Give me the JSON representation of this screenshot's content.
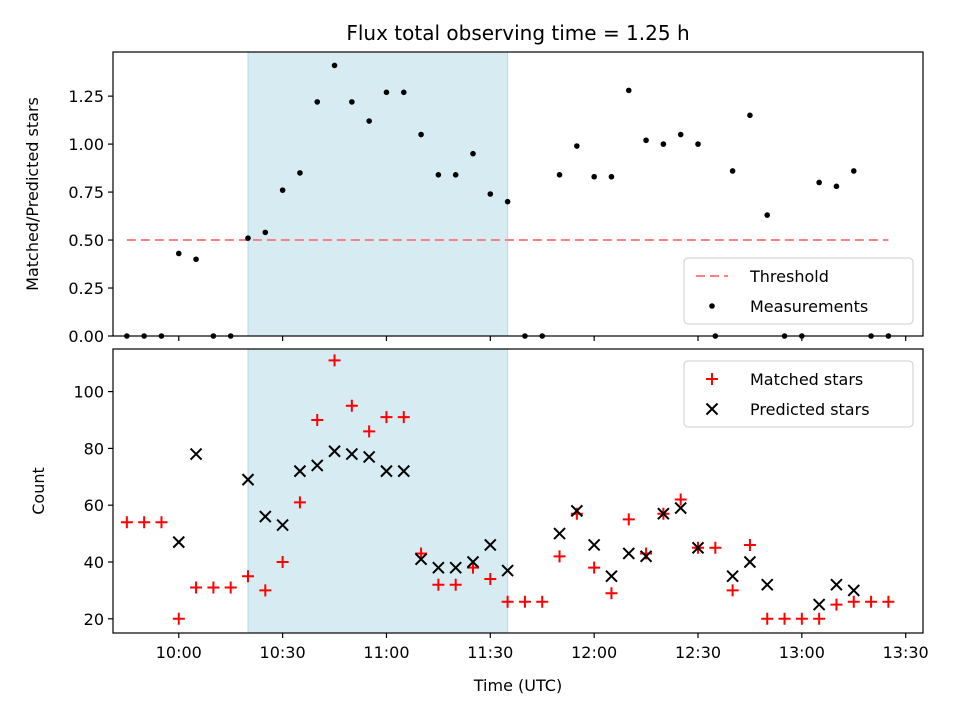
{
  "chart_data": [
    {
      "type": "scatter",
      "title": "Flux total observing time = 1.25 h",
      "ylabel": "Matched/Predicted stars",
      "xlim": [
        "09:41",
        "13:35"
      ],
      "ylim": [
        0,
        1.48
      ],
      "xticks": [
        "10:00",
        "10:30",
        "11:00",
        "11:30",
        "12:00",
        "12:30",
        "13:00",
        "13:30"
      ],
      "yticks": [
        "0.00",
        "0.25",
        "0.50",
        "0.75",
        "1.00",
        "1.25"
      ],
      "shaded_interval": [
        "10:20",
        "11:35"
      ],
      "threshold": {
        "name": "Threshold",
        "value": 0.5,
        "x": [
          "09:45",
          "13:25"
        ],
        "color": "#ff8080",
        "style": "dashed"
      },
      "series": [
        {
          "name": "Measurements",
          "marker": "dot",
          "color": "#000000",
          "x": [
            "09:45",
            "09:50",
            "09:55",
            "10:00",
            "10:05",
            "10:10",
            "10:15",
            "10:20",
            "10:25",
            "10:30",
            "10:35",
            "10:40",
            "10:45",
            "10:50",
            "10:55",
            "11:00",
            "11:05",
            "11:10",
            "11:15",
            "11:20",
            "11:25",
            "11:30",
            "11:35",
            "11:40",
            "11:45",
            "11:50",
            "11:55",
            "12:00",
            "12:05",
            "12:10",
            "12:15",
            "12:20",
            "12:25",
            "12:30",
            "12:35",
            "12:40",
            "12:45",
            "12:50",
            "12:55",
            "13:00",
            "13:05",
            "13:10",
            "13:15",
            "13:20",
            "13:25"
          ],
          "y": [
            0,
            0,
            0,
            0.43,
            0.4,
            0,
            0,
            0.51,
            0.54,
            0.76,
            0.85,
            1.22,
            1.41,
            1.22,
            1.12,
            1.27,
            1.27,
            1.05,
            0.84,
            0.84,
            0.95,
            0.74,
            0.7,
            0,
            0,
            0.84,
            0.99,
            0.83,
            0.83,
            1.28,
            1.02,
            1.0,
            1.05,
            1.0,
            0,
            0.86,
            1.15,
            0.63,
            0,
            0,
            0.8,
            0.78,
            0.86,
            0,
            0
          ]
        }
      ],
      "legend": {
        "position": "lower-right",
        "entries": [
          "Threshold",
          "Measurements"
        ]
      }
    },
    {
      "type": "scatter",
      "xlabel": "Time (UTC)",
      "ylabel": "Count",
      "xlim": [
        "09:41",
        "13:35"
      ],
      "ylim": [
        15,
        115
      ],
      "xticks": [
        "10:00",
        "10:30",
        "11:00",
        "11:30",
        "12:00",
        "12:30",
        "13:00",
        "13:30"
      ],
      "yticks": [
        "20",
        "40",
        "60",
        "80",
        "100"
      ],
      "shaded_interval": [
        "10:20",
        "11:35"
      ],
      "series": [
        {
          "name": "Matched stars",
          "marker": "plus",
          "color": "#ff0000",
          "x": [
            "09:45",
            "09:50",
            "09:55",
            "10:00",
            "10:05",
            "10:10",
            "10:15",
            "10:20",
            "10:25",
            "10:30",
            "10:35",
            "10:40",
            "10:45",
            "10:50",
            "10:55",
            "11:00",
            "11:05",
            "11:10",
            "11:15",
            "11:20",
            "11:25",
            "11:30",
            "11:35",
            "11:40",
            "11:45",
            "11:50",
            "11:55",
            "12:00",
            "12:05",
            "12:10",
            "12:15",
            "12:20",
            "12:25",
            "12:30",
            "12:35",
            "12:40",
            "12:45",
            "12:50",
            "12:55",
            "13:00",
            "13:05",
            "13:10",
            "13:15",
            "13:20",
            "13:25"
          ],
          "y": [
            54,
            54,
            54,
            20,
            31,
            31,
            31,
            35,
            30,
            40,
            61,
            90,
            111,
            95,
            86,
            91,
            91,
            43,
            32,
            32,
            38,
            34,
            26,
            26,
            26,
            42,
            57,
            38,
            29,
            55,
            43,
            57,
            62,
            45,
            45,
            30,
            46,
            20,
            20,
            20,
            20,
            25,
            26,
            26,
            26
          ]
        },
        {
          "name": "Predicted stars",
          "marker": "x",
          "color": "#000000",
          "x": [
            "10:00",
            "10:05",
            "10:20",
            "10:25",
            "10:30",
            "10:35",
            "10:40",
            "10:45",
            "10:50",
            "10:55",
            "11:00",
            "11:05",
            "11:10",
            "11:15",
            "11:20",
            "11:25",
            "11:30",
            "11:35",
            "11:50",
            "11:55",
            "12:00",
            "12:05",
            "12:10",
            "12:15",
            "12:20",
            "12:25",
            "12:30",
            "12:40",
            "12:45",
            "12:50",
            "13:05",
            "13:10",
            "13:15"
          ],
          "y": [
            47,
            78,
            69,
            56,
            53,
            72,
            74,
            79,
            78,
            77,
            72,
            72,
            41,
            38,
            38,
            40,
            46,
            37,
            50,
            58,
            46,
            35,
            43,
            42,
            57,
            59,
            45,
            35,
            40,
            32,
            25,
            32,
            30
          ]
        }
      ],
      "legend": {
        "position": "upper-right",
        "entries": [
          "Matched stars",
          "Predicted stars"
        ]
      }
    }
  ],
  "colors": {
    "shade": "#add8e6",
    "threshold": "#ff8080",
    "matched": "#ff0000",
    "predicted": "#000000"
  }
}
